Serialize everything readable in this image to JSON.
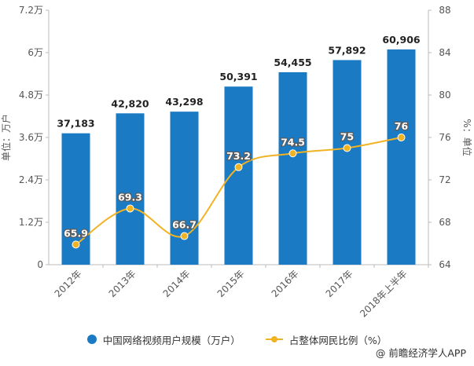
{
  "chart_data": {
    "type": "bar+line",
    "categories": [
      "2012年",
      "2013年",
      "2014年",
      "2015年",
      "2016年",
      "2017年",
      "2018年上半年"
    ],
    "series": [
      {
        "name": "中国网络视频用户规模（万户）",
        "type": "bar",
        "axis": "left",
        "values": [
          37183,
          42820,
          43298,
          50391,
          54455,
          57892,
          60906
        ],
        "labels": [
          "37,183",
          "42,820",
          "43,298",
          "50,391",
          "54,455",
          "57,892",
          "60,906"
        ],
        "color": "#1a7ac4"
      },
      {
        "name": "占整体网民比例（%）",
        "type": "line",
        "axis": "right",
        "values": [
          65.9,
          69.3,
          66.7,
          73.2,
          74.5,
          75,
          76
        ],
        "labels": [
          "65.9",
          "69.3",
          "66.7",
          "73.2",
          "74.5",
          "75",
          "76"
        ],
        "color": "#f0b323"
      }
    ],
    "y_left": {
      "label": "单位：万户",
      "ylim": [
        0,
        72000
      ],
      "ticks": [
        0,
        12000,
        24000,
        36000,
        48000,
        60000,
        72000
      ],
      "tick_labels": [
        "0",
        "1.2万",
        "2.4万",
        "3.6万",
        "4.8万",
        "6万",
        "7.2万"
      ]
    },
    "y_right": {
      "label": "%：单位",
      "ylim": [
        64,
        88
      ],
      "ticks": [
        64,
        68,
        72,
        76,
        80,
        84,
        88
      ],
      "tick_labels": [
        "64",
        "68",
        "72",
        "76",
        "80",
        "84",
        "88"
      ]
    },
    "grid": false,
    "legend_position": "bottom"
  },
  "legend": {
    "bar_label": "中国网络视频用户规模（万户）",
    "line_label": "占整体网民比例（%）"
  },
  "watermark": {
    "text": "@ 前瞻经济学人APP"
  }
}
